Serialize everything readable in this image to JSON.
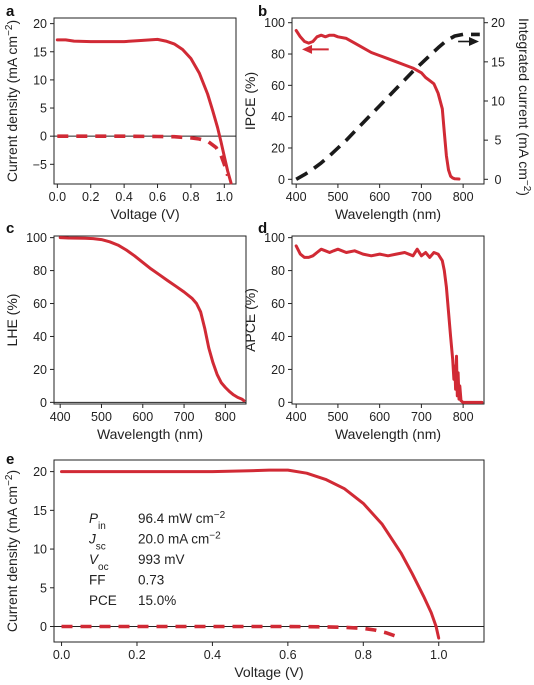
{
  "colors": {
    "red": "#d12a35",
    "black": "#1a1a1a"
  },
  "chart_data": [
    {
      "id": "a",
      "type": "line",
      "panel_label": "a",
      "xlabel": "Voltage (V)",
      "ylabel": "Current density (mA cm−2)",
      "xlim": [
        -0.02,
        1.07
      ],
      "ylim": [
        -8.5,
        21
      ],
      "xticks": [
        0.0,
        0.2,
        0.4,
        0.6,
        0.8,
        1.0
      ],
      "xtick_labels": [
        "0.0",
        "0.2",
        "0.4",
        "0.6",
        "0.8",
        "1.0"
      ],
      "yticks": [
        -5,
        0,
        5,
        10,
        15,
        20
      ],
      "ytick_labels": [
        "−5",
        "0",
        "5",
        "10",
        "15",
        "20"
      ],
      "zero_line": true,
      "series": [
        {
          "style": "solid",
          "color": "#d12a35",
          "x": [
            0.0,
            0.05,
            0.1,
            0.2,
            0.3,
            0.4,
            0.5,
            0.6,
            0.65,
            0.7,
            0.75,
            0.8,
            0.85,
            0.9,
            0.93,
            0.96,
            0.98,
            1.0,
            1.02,
            1.04
          ],
          "y": [
            17.1,
            17.1,
            16.9,
            16.8,
            16.8,
            16.8,
            17.0,
            17.2,
            16.9,
            16.4,
            15.4,
            13.8,
            11.2,
            7.5,
            4.6,
            1.5,
            -1.0,
            -3.6,
            -6.2,
            -8.3
          ]
        },
        {
          "style": "dashed",
          "color": "#d12a35",
          "x": [
            0.0,
            0.2,
            0.4,
            0.6,
            0.7,
            0.8,
            0.85,
            0.9,
            0.95,
            0.98,
            1.0,
            1.02
          ],
          "y": [
            0.0,
            0.0,
            0.0,
            -0.05,
            -0.1,
            -0.3,
            -0.5,
            -0.9,
            -2.0,
            -3.4,
            -5.0,
            -7.0
          ]
        }
      ]
    },
    {
      "id": "b",
      "type": "line",
      "panel_label": "b",
      "xlabel": "Wavelength (nm)",
      "ylabel": "IPCE (%)",
      "y2label": "Integrated current (mA cm−2)",
      "xlim": [
        390,
        850
      ],
      "ylim": [
        -3,
        103
      ],
      "y2lim": [
        -0.6,
        20.6
      ],
      "xticks": [
        400,
        500,
        600,
        700,
        800
      ],
      "xtick_labels": [
        "400",
        "500",
        "600",
        "700",
        "800"
      ],
      "yticks": [
        0,
        20,
        40,
        60,
        80,
        100
      ],
      "ytick_labels": [
        "0",
        "20",
        "40",
        "60",
        "80",
        "100"
      ],
      "y2ticks": [
        0,
        5,
        10,
        15,
        20
      ],
      "y2tick_labels": [
        "0",
        "5",
        "10",
        "15",
        "20"
      ],
      "series": [
        {
          "style": "solid",
          "color": "#d12a35",
          "axis": "left",
          "x": [
            400,
            410,
            420,
            430,
            440,
            450,
            460,
            470,
            480,
            490,
            500,
            520,
            540,
            560,
            580,
            600,
            620,
            640,
            660,
            680,
            700,
            710,
            720,
            730,
            740,
            750,
            755,
            760,
            765,
            770,
            775,
            780,
            790
          ],
          "y": [
            95,
            91,
            88,
            87,
            88,
            91,
            92,
            91,
            92,
            92,
            91,
            90,
            87,
            84,
            81,
            79,
            77,
            75,
            73,
            71,
            68,
            65,
            63,
            61,
            55,
            45,
            30,
            15,
            6,
            2,
            0.8,
            0.3,
            0.2
          ]
        },
        {
          "style": "dashed",
          "color": "#1a1a1a",
          "axis": "right",
          "x": [
            400,
            420,
            440,
            460,
            480,
            500,
            520,
            540,
            560,
            580,
            600,
            620,
            640,
            660,
            680,
            700,
            720,
            740,
            760,
            780,
            800,
            820,
            840
          ],
          "y2": [
            0.0,
            0.6,
            1.3,
            2.1,
            3.0,
            4.0,
            5.0,
            6.1,
            7.2,
            8.3,
            9.4,
            10.5,
            11.6,
            12.7,
            13.8,
            14.8,
            15.8,
            16.8,
            17.7,
            18.3,
            18.5,
            18.5,
            18.5
          ]
        }
      ],
      "arrows": [
        {
          "direction": "left",
          "color": "#d12a35",
          "axis": "left"
        },
        {
          "direction": "right",
          "color": "#1a1a1a",
          "axis": "right"
        }
      ]
    },
    {
      "id": "c",
      "type": "line",
      "panel_label": "c",
      "xlabel": "Wavelength (nm)",
      "ylabel": "LHE (%)",
      "xlim": [
        385,
        850
      ],
      "ylim": [
        -1,
        101
      ],
      "xticks": [
        400,
        500,
        600,
        700,
        800
      ],
      "xtick_labels": [
        "400",
        "500",
        "600",
        "700",
        "800"
      ],
      "yticks": [
        0,
        20,
        40,
        60,
        80,
        100
      ],
      "ytick_labels": [
        "0",
        "20",
        "40",
        "60",
        "80",
        "100"
      ],
      "zero_line": true,
      "series": [
        {
          "style": "solid",
          "color": "#d12a35",
          "x": [
            400,
            420,
            440,
            460,
            480,
            500,
            520,
            540,
            560,
            580,
            600,
            620,
            640,
            660,
            680,
            700,
            720,
            730,
            740,
            750,
            760,
            770,
            780,
            790,
            800,
            810,
            820,
            830,
            840,
            845
          ],
          "y": [
            100,
            99.8,
            99.7,
            99.6,
            99.4,
            98.8,
            97.5,
            95.5,
            92.5,
            89,
            85,
            81,
            77.5,
            74,
            70.5,
            67,
            63,
            60,
            55,
            45,
            33,
            24,
            17,
            12,
            9,
            6.5,
            4.5,
            3,
            2,
            1
          ]
        }
      ]
    },
    {
      "id": "d",
      "type": "line",
      "panel_label": "d",
      "xlabel": "Wavelength (nm)",
      "ylabel": "APCE (%)",
      "xlim": [
        390,
        850
      ],
      "ylim": [
        -1,
        101
      ],
      "xticks": [
        400,
        500,
        600,
        700,
        800
      ],
      "xtick_labels": [
        "400",
        "500",
        "600",
        "700",
        "800"
      ],
      "yticks": [
        0,
        20,
        40,
        60,
        80,
        100
      ],
      "ytick_labels": [
        "0",
        "20",
        "40",
        "60",
        "80",
        "100"
      ],
      "series": [
        {
          "style": "solid",
          "color": "#d12a35",
          "x": [
            400,
            410,
            420,
            430,
            440,
            450,
            460,
            470,
            480,
            490,
            500,
            520,
            540,
            560,
            580,
            600,
            620,
            640,
            660,
            680,
            690,
            700,
            710,
            720,
            730,
            740,
            750,
            755,
            760,
            765,
            770,
            775,
            778,
            780,
            782,
            784,
            786,
            788,
            790,
            792,
            795,
            800,
            820,
            845
          ],
          "y": [
            95,
            90,
            88,
            88,
            89,
            91,
            93,
            92,
            91,
            92,
            93,
            91,
            92,
            90,
            89,
            90,
            89,
            90,
            91,
            89,
            93,
            89,
            91,
            88,
            91,
            90,
            86,
            80,
            70,
            55,
            40,
            26,
            14,
            22,
            8,
            28,
            4,
            18,
            2,
            10,
            1,
            0,
            0,
            0
          ]
        }
      ]
    },
    {
      "id": "e",
      "type": "line",
      "panel_label": "e",
      "xlabel": "Voltage (V)",
      "ylabel": "Current density (mA cm−2)",
      "xlim": [
        -0.02,
        1.12
      ],
      "ylim": [
        -2.0,
        21.5
      ],
      "xticks": [
        0.0,
        0.2,
        0.4,
        0.6,
        0.8,
        1.0
      ],
      "xtick_labels": [
        "0.0",
        "0.2",
        "0.4",
        "0.6",
        "0.8",
        "1.0"
      ],
      "yticks": [
        0,
        5,
        10,
        15,
        20
      ],
      "ytick_labels": [
        "0",
        "5",
        "10",
        "15",
        "20"
      ],
      "zero_line": true,
      "series": [
        {
          "style": "solid",
          "color": "#d12a35",
          "x": [
            0.0,
            0.1,
            0.2,
            0.3,
            0.4,
            0.5,
            0.55,
            0.6,
            0.65,
            0.7,
            0.75,
            0.8,
            0.85,
            0.9,
            0.93,
            0.96,
            0.98,
            0.993,
            1.0
          ],
          "y": [
            20.0,
            20.0,
            20.0,
            20.0,
            20.0,
            20.1,
            20.2,
            20.2,
            19.8,
            19.0,
            17.8,
            15.9,
            13.2,
            9.5,
            6.8,
            3.9,
            1.8,
            0.0,
            -1.5
          ]
        },
        {
          "style": "dashed",
          "color": "#d12a35",
          "x": [
            0.0,
            0.2,
            0.4,
            0.6,
            0.7,
            0.75,
            0.8,
            0.83,
            0.86,
            0.89
          ],
          "y": [
            0.0,
            0.0,
            0.0,
            0.0,
            -0.05,
            -0.1,
            -0.25,
            -0.45,
            -0.8,
            -1.3
          ]
        }
      ],
      "annotation": [
        {
          "sym": "P",
          "sub": "in",
          "value": "96.4 mW cm−2"
        },
        {
          "sym": "J",
          "sub": "sc",
          "value": "20.0 mA cm−2"
        },
        {
          "sym": "V",
          "sub": "oc",
          "value": "993 mV"
        },
        {
          "sym": "FF",
          "sub": "",
          "value": "0.73"
        },
        {
          "sym": "PCE",
          "sub": "",
          "value": "15.0%"
        }
      ]
    }
  ]
}
